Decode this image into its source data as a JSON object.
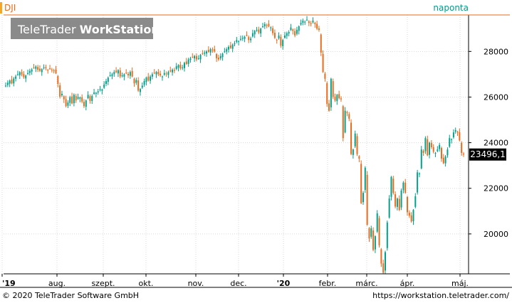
{
  "chart_data": {
    "type": "candlestick",
    "symbol": "DJI",
    "interval_label": "naponta",
    "watermark": {
      "brand": "TeleTrader",
      "product": "WorkStation"
    },
    "last_price_label": "23496,1",
    "last_price": 23496.1,
    "y_ticks": [
      20000,
      22000,
      24000,
      26000,
      28000
    ],
    "y_tick_labels": [
      "20000",
      "22000",
      "24000",
      "26000",
      "28000"
    ],
    "ylim": [
      18250,
      29600
    ],
    "x_tick_labels": [
      "'19",
      "aug.",
      "szept.",
      "okt.",
      "nov.",
      "dec.",
      "'20",
      "febr.",
      "márc.",
      "ápr.",
      "máj."
    ],
    "x_tick_bold": [
      true,
      false,
      false,
      false,
      false,
      false,
      true,
      false,
      false,
      false,
      false
    ],
    "grid": true,
    "colors": {
      "up": "#00a08a",
      "down": "#e96a1a",
      "grid": "#d8d8d8",
      "symbol_text": "#e96a1a",
      "interval_text": "#009b87",
      "last_price_bg": "#000000",
      "last_price_text": "#ffffff",
      "left_marker": "#f5a623"
    },
    "closes": [
      26500,
      26630,
      26720,
      26600,
      26810,
      26900,
      27000,
      27090,
      26990,
      26870,
      26940,
      27050,
      27150,
      27210,
      27280,
      27340,
      27200,
      27150,
      27220,
      27300,
      27260,
      27180,
      27240,
      27200,
      27160,
      27050,
      26580,
      26020,
      26140,
      25900,
      25600,
      25760,
      26000,
      25720,
      26100,
      25850,
      26000,
      25980,
      25800,
      25600,
      25850,
      26100,
      25830,
      26050,
      26200,
      26180,
      26250,
      26350,
      26330,
      26550,
      26700,
      26850,
      26950,
      27000,
      27100,
      27090,
      27180,
      26900,
      26950,
      27000,
      27050,
      26950,
      27100,
      26900,
      26600,
      26750,
      26280,
      26350,
      26500,
      26700,
      26850,
      26720,
      26900,
      27000,
      27050,
      27100,
      27000,
      26950,
      26900,
      27050,
      27000,
      27100,
      27120,
      27200,
      27150,
      27350,
      27400,
      27250,
      27300,
      27500,
      27450,
      27650,
      27690,
      27750,
      27800,
      27650,
      27700,
      27850,
      27900,
      27950,
      28000,
      27980,
      28100,
      28050,
      28000,
      27700,
      27650,
      27800,
      27900,
      28000,
      28100,
      28200,
      28150,
      28300,
      28350,
      28500,
      28450,
      28550,
      28600,
      28640,
      28700,
      28500,
      28560,
      28800,
      28900,
      28950,
      28830,
      29000,
      29100,
      29200,
      29150,
      29100,
      29050,
      28800,
      28600,
      28500,
      28700,
      28250,
      28500,
      28700,
      28800,
      28850,
      29050,
      28900,
      28700,
      28950,
      29100,
      29250,
      29350,
      29300,
      29390,
      29250,
      29200,
      29350,
      29200,
      29000,
      28950,
      27950,
      27100,
      26800,
      25700,
      25400,
      26800,
      26000,
      25850,
      26100,
      25950,
      25900,
      24200,
      25400,
      25300,
      25050,
      23500,
      23700,
      24400,
      23500,
      23300,
      21350,
      21800,
      22900,
      20400,
      19800,
      20250,
      19300,
      19900,
      20900,
      19500,
      18700,
      18300,
      19200,
      20500,
      21550,
      22500,
      21800,
      21200,
      21550,
      21050,
      21900,
      22250,
      21800,
      20950,
      20800,
      20550,
      21050,
      21650,
      22700,
      22650,
      23700,
      23550,
      24200,
      23450,
      24000,
      23800,
      23600,
      23550,
      23700,
      23900,
      23300,
      23100,
      23400,
      23700,
      24200,
      24150,
      24450,
      24550,
      24450,
      24100,
      23550,
      23500
    ],
    "series": [
      {
        "name": "DJI",
        "values": [
          26500,
          26630,
          26720,
          26600,
          26810,
          26900,
          27000,
          27090,
          26990,
          26870,
          26940,
          27050,
          27150,
          27210,
          27280,
          27340,
          27200,
          27150,
          27220,
          27300,
          27260,
          27180,
          27240,
          27200,
          27160,
          27050,
          26580,
          26020,
          26140,
          25900,
          25600,
          25760,
          26000,
          25720,
          26100,
          25850,
          26000,
          25980,
          25800,
          25600,
          25850,
          26100,
          25830,
          26050,
          26200,
          26180,
          26250,
          26350,
          26330,
          26550,
          26700,
          26850,
          26950,
          27000,
          27100,
          27090,
          27180,
          26900,
          26950,
          27000,
          27050,
          26950,
          27100,
          26900,
          26600,
          26750,
          26280,
          26350,
          26500,
          26700,
          26850,
          26720,
          26900,
          27000,
          27050,
          27100,
          27000,
          26950,
          26900,
          27050,
          27000,
          27100,
          27120,
          27200,
          27150,
          27350,
          27400,
          27250,
          27300,
          27500,
          27450,
          27650,
          27690,
          27750,
          27800,
          27650,
          27700,
          27850,
          27900,
          27950,
          28000,
          27980,
          28100,
          28050,
          28000,
          27700,
          27650,
          27800,
          27900,
          28000,
          28100,
          28200,
          28150,
          28300,
          28350,
          28500,
          28450,
          28550,
          28600,
          28640,
          28700,
          28500,
          28560,
          28800,
          28900,
          28950,
          28830,
          29000,
          29100,
          29200,
          29150,
          29100,
          29050,
          28800,
          28600,
          28500,
          28700,
          28250,
          28500,
          28700,
          28800,
          28850,
          29050,
          28900,
          28700,
          28950,
          29100,
          29250,
          29350,
          29300,
          29390,
          29250,
          29200,
          29350,
          29200,
          29000,
          28950,
          27950,
          27100,
          26800,
          25700,
          25400,
          26800,
          26000,
          25850,
          26100,
          25950,
          25900,
          24200,
          25400,
          25300,
          25050,
          23500,
          23700,
          24400,
          23500,
          23300,
          21350,
          21800,
          22900,
          20400,
          19800,
          20250,
          19300,
          19900,
          20900,
          19500,
          18700,
          18300,
          19200,
          20500,
          21550,
          22500,
          21800,
          21200,
          21550,
          21050,
          21900,
          22250,
          21800,
          20950,
          20800,
          20550,
          21050,
          21650,
          22700,
          22650,
          23700,
          23550,
          24200,
          23450,
          24000,
          23800,
          23600,
          23550,
          23700,
          23900,
          23300,
          23100,
          23400,
          23700,
          24200,
          24150,
          24450,
          24550,
          24450,
          24100,
          23550,
          23500
        ]
      }
    ]
  },
  "footer": {
    "copyright": "© 2020 TeleTrader Software GmbH",
    "url": "https://workstation.teletrader.com/"
  }
}
